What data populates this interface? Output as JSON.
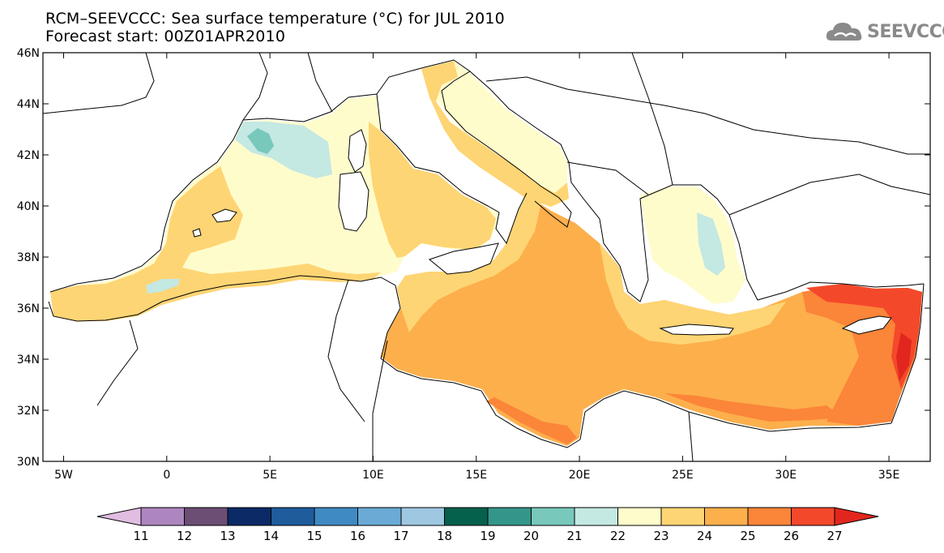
{
  "header": {
    "title": "RCM–SEEVCCC: Sea surface temperature (°C) for JUL 2010",
    "subtitle": "Forecast start: 00Z01APR2010"
  },
  "logo": {
    "text": "SEEVCCC",
    "icon": "cloud-icon",
    "color": "#8a8a8a"
  },
  "map": {
    "lon_range": [
      -6,
      37
    ],
    "lat_range": [
      30,
      46
    ],
    "lat_ticks": [
      {
        "value": 46,
        "label": "46N"
      },
      {
        "value": 44,
        "label": "44N"
      },
      {
        "value": 42,
        "label": "42N"
      },
      {
        "value": 40,
        "label": "40N"
      },
      {
        "value": 38,
        "label": "38N"
      },
      {
        "value": 36,
        "label": "36N"
      },
      {
        "value": 34,
        "label": "34N"
      },
      {
        "value": 32,
        "label": "32N"
      },
      {
        "value": 30,
        "label": "30N"
      }
    ],
    "lon_ticks": [
      {
        "value": -5,
        "label": "5W"
      },
      {
        "value": 0,
        "label": "0"
      },
      {
        "value": 5,
        "label": "5E"
      },
      {
        "value": 10,
        "label": "10E"
      },
      {
        "value": 15,
        "label": "15E"
      },
      {
        "value": 20,
        "label": "20E"
      },
      {
        "value": 25,
        "label": "25E"
      },
      {
        "value": 30,
        "label": "30E"
      },
      {
        "value": 35,
        "label": "35E"
      }
    ]
  },
  "colorbar": {
    "labels": [
      "11",
      "12",
      "13",
      "14",
      "15",
      "16",
      "17",
      "18",
      "19",
      "20",
      "21",
      "22",
      "23",
      "24",
      "25",
      "26",
      "27"
    ],
    "colors": [
      "#e2bde2",
      "#ad86bf",
      "#6c4e74",
      "#0b2a66",
      "#1e5c9c",
      "#3f8ac2",
      "#6aaad4",
      "#9ec8e2",
      "#05604c",
      "#34968a",
      "#78c8bc",
      "#c4e8e2",
      "#fffccc",
      "#fed574",
      "#fdaf4c",
      "#fb8539",
      "#f4482a",
      "#e2261e"
    ]
  }
}
